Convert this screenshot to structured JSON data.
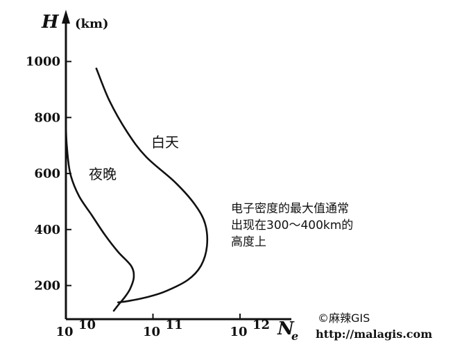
{
  "chart_data": {
    "type": "line",
    "y_axis": {
      "label": "H",
      "unit": "(km)",
      "ticks": [
        200,
        400,
        600,
        800,
        1000
      ],
      "range": [
        80,
        1170
      ]
    },
    "x_axis": {
      "label": "N",
      "label_subscript": "e",
      "scale": "log",
      "ticks": [
        {
          "base": "10",
          "exp": "10",
          "value": 10
        },
        {
          "base": "10",
          "exp": "11",
          "value": 11
        },
        {
          "base": "10",
          "exp": "12",
          "value": 12
        }
      ],
      "range_log": [
        10,
        12.55
      ]
    },
    "series": [
      {
        "name": "白天",
        "x_log": [
          10.35,
          10.5,
          10.7,
          10.92,
          11.25,
          11.48,
          11.6,
          11.62,
          11.55,
          11.4,
          11.15,
          10.95,
          10.72,
          10.6
        ],
        "y": [
          975,
          860,
          750,
          660,
          570,
          490,
          420,
          340,
          270,
          220,
          180,
          160,
          145,
          140
        ]
      },
      {
        "name": "夜晚",
        "x_log": [
          10.0,
          10.01,
          10.05,
          10.15,
          10.3,
          10.45,
          10.6,
          10.75,
          10.78,
          10.74,
          10.68,
          10.6,
          10.55
        ],
        "y": [
          780,
          700,
          600,
          520,
          450,
          380,
          320,
          270,
          230,
          190,
          160,
          130,
          110
        ]
      }
    ],
    "annotations": {
      "max_note": [
        "电子密度的最大值通常",
        "出现在300～400km的",
        "高度上"
      ]
    },
    "grid": false
  },
  "watermark": {
    "credit": "©麻辣GIS",
    "url": "http://malagis.com"
  },
  "colors": {
    "ink": "#111111",
    "background": "#ffffff"
  }
}
